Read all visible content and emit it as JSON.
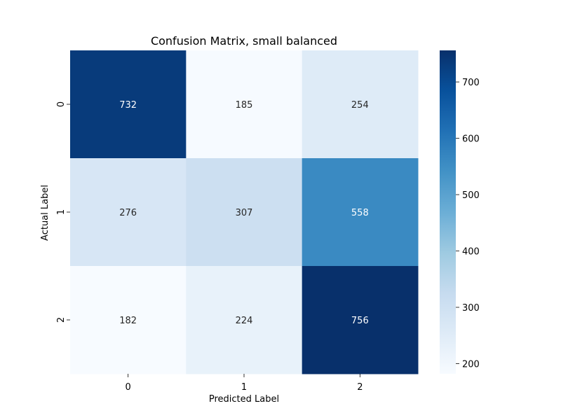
{
  "chart_data": {
    "type": "heatmap",
    "title": "Confusion Matrix, small balanced",
    "xlabel": "Predicted Label",
    "ylabel": "Actual Label",
    "x_categories": [
      "0",
      "1",
      "2"
    ],
    "y_categories": [
      "0",
      "1",
      "2"
    ],
    "values": [
      [
        732,
        185,
        254
      ],
      [
        276,
        307,
        558
      ],
      [
        182,
        224,
        756
      ]
    ],
    "colormap": "Blues",
    "color_range": [
      182,
      756
    ],
    "colorbar_ticks": [
      "200",
      "300",
      "400",
      "500",
      "600",
      "700"
    ],
    "colorbar_tick_values": [
      200,
      300,
      400,
      500,
      600,
      700
    ]
  }
}
